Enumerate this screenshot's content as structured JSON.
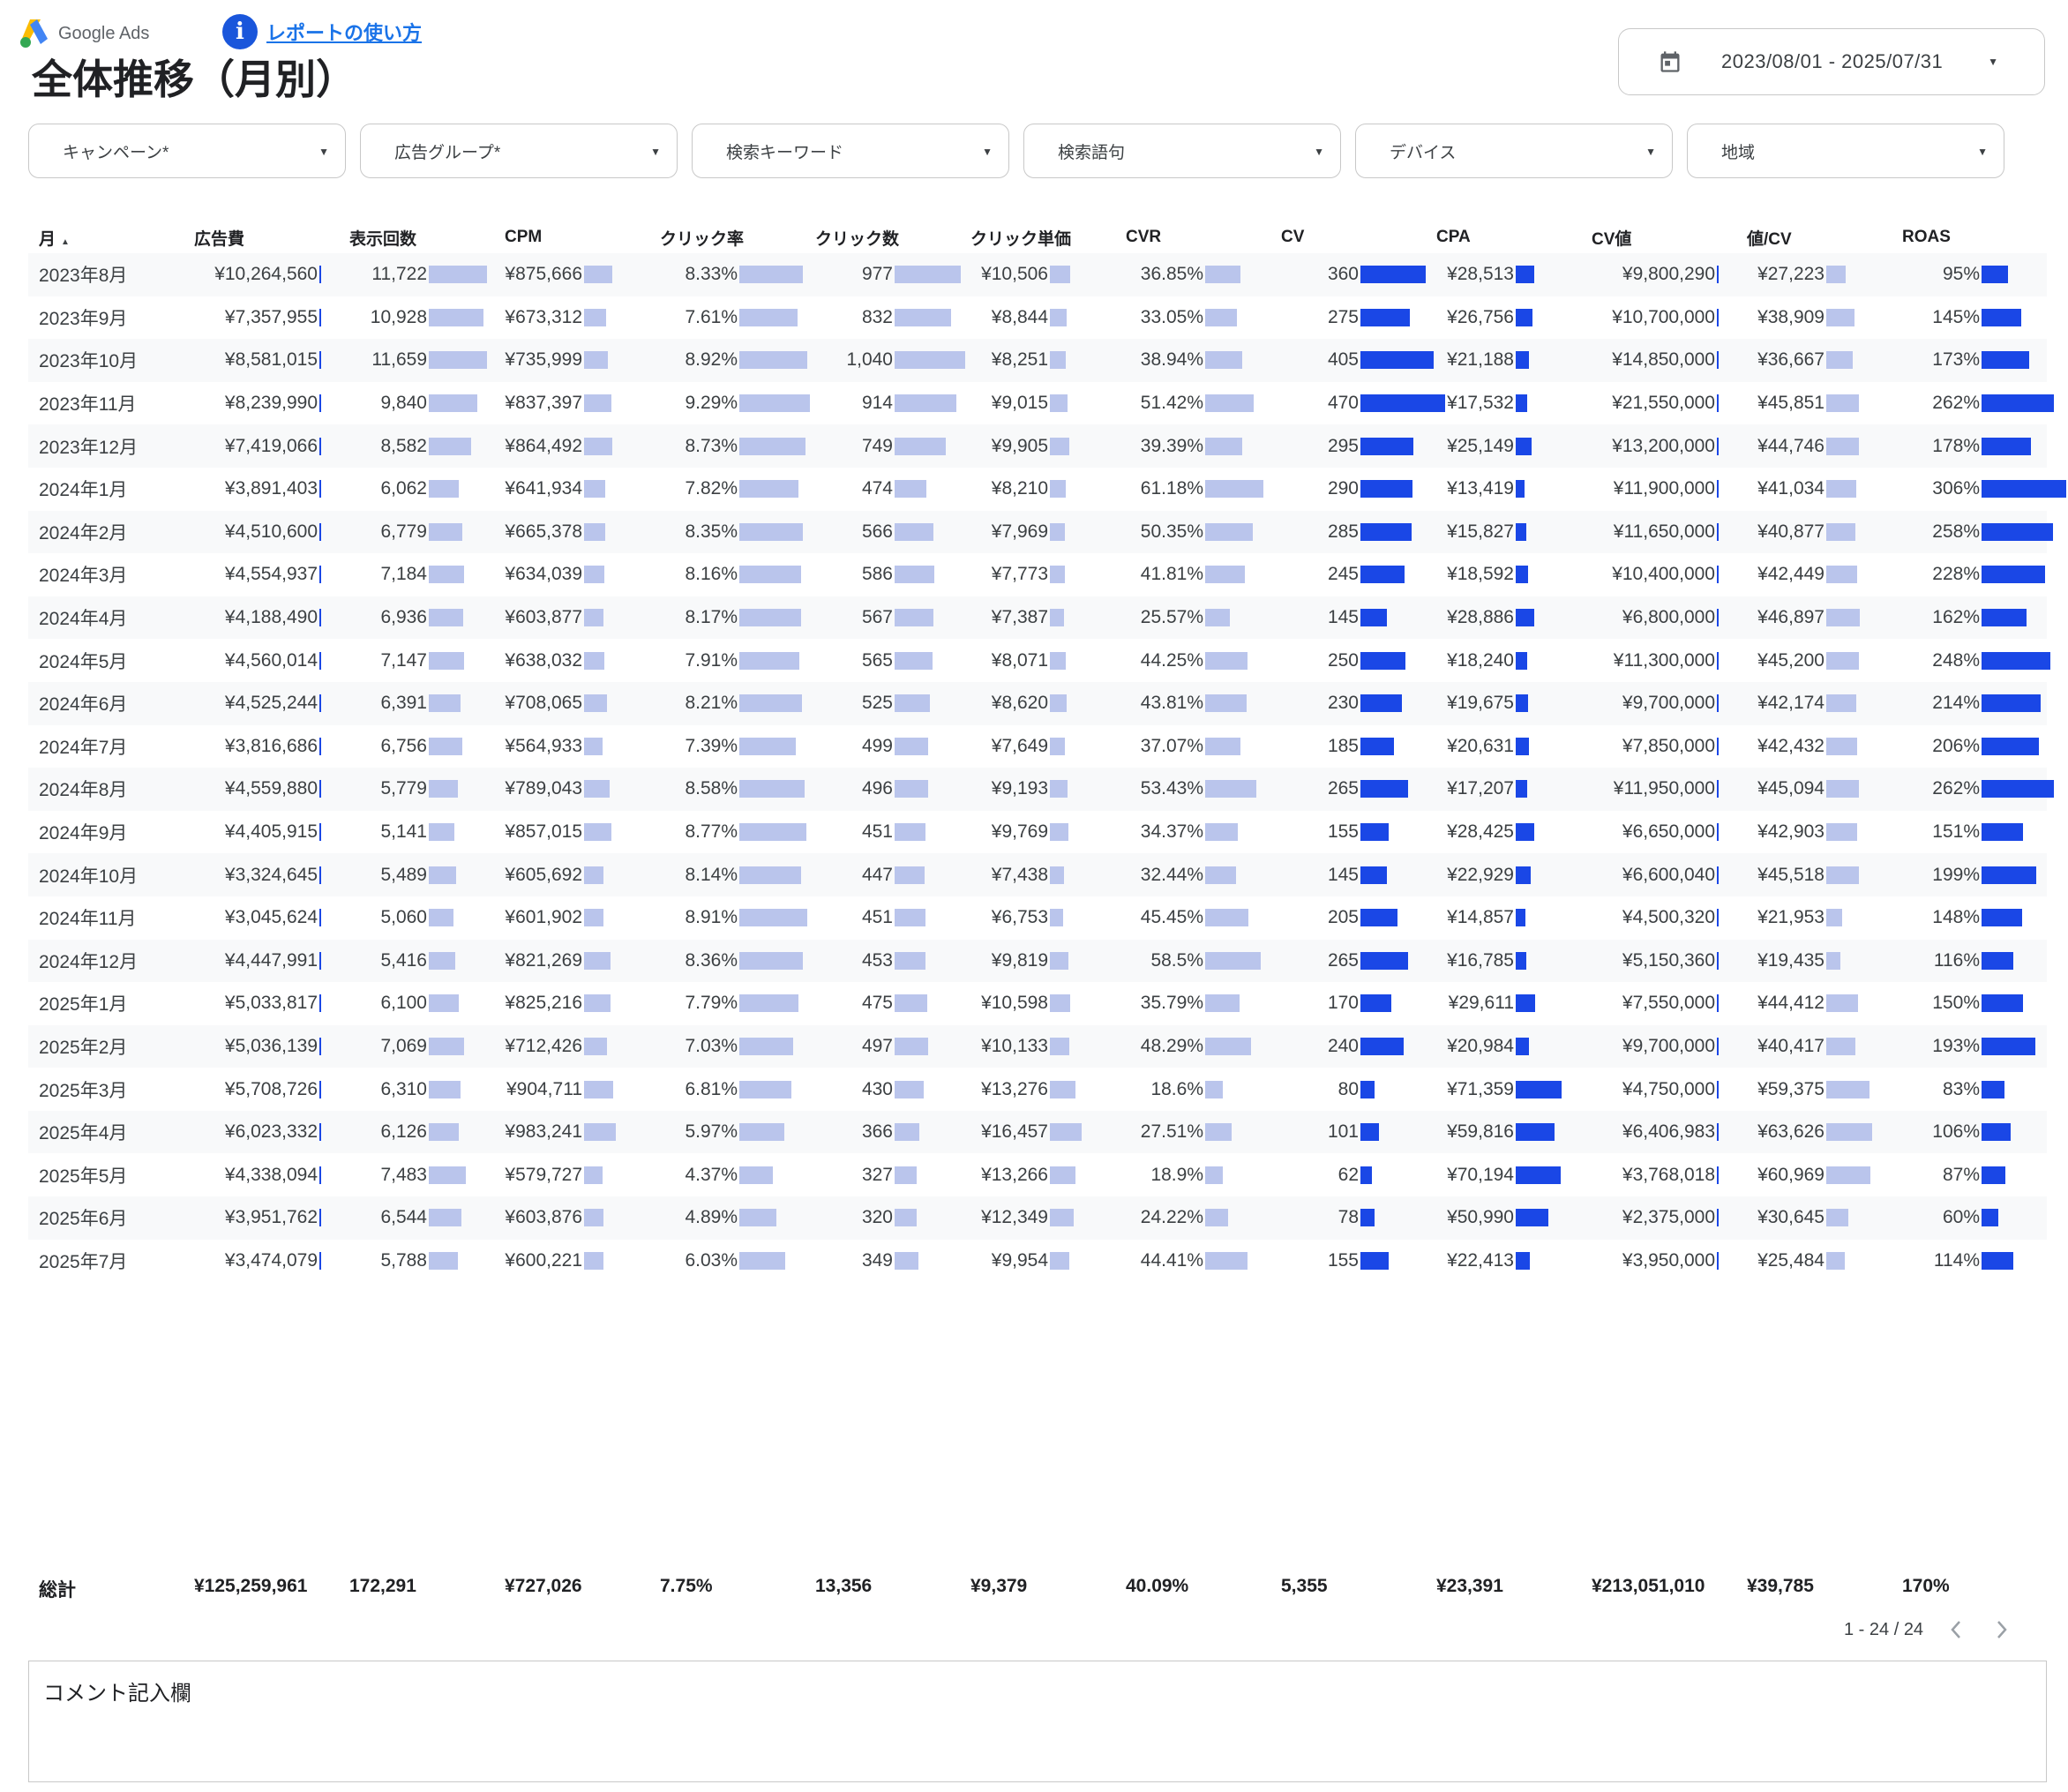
{
  "header": {
    "logo_text": "Google Ads",
    "help_link": "レポートの使い方",
    "title": "全体推移（月別）",
    "date_range": "2023/08/01 - 2025/07/31"
  },
  "filters": [
    "キャンペーン*",
    "広告グループ*",
    "検索キーワード",
    "検索語句",
    "デバイス",
    "地域"
  ],
  "table": {
    "columns": [
      "月",
      "広告費",
      "表示回数",
      "CPM",
      "クリック率",
      "クリック数",
      "クリック単価",
      "CVR",
      "CV",
      "CPA",
      "CV値",
      "値/CV",
      "ROAS"
    ],
    "rows": [
      {
        "month": "2023年8月",
        "cost": "¥10,264,560",
        "imp": "11,722",
        "cpm": "¥875,666",
        "ctr": "8.33%",
        "clicks": "977",
        "cpc": "¥10,506",
        "cvr": "36.85%",
        "cv": "360",
        "cpa": "¥28,513",
        "cvv": "¥9,800,290",
        "vpc": "¥27,223",
        "roas": "95%"
      },
      {
        "month": "2023年9月",
        "cost": "¥7,357,955",
        "imp": "10,928",
        "cpm": "¥673,312",
        "ctr": "7.61%",
        "clicks": "832",
        "cpc": "¥8,844",
        "cvr": "33.05%",
        "cv": "275",
        "cpa": "¥26,756",
        "cvv": "¥10,700,000",
        "vpc": "¥38,909",
        "roas": "145%"
      },
      {
        "month": "2023年10月",
        "cost": "¥8,581,015",
        "imp": "11,659",
        "cpm": "¥735,999",
        "ctr": "8.92%",
        "clicks": "1,040",
        "cpc": "¥8,251",
        "cvr": "38.94%",
        "cv": "405",
        "cpa": "¥21,188",
        "cvv": "¥14,850,000",
        "vpc": "¥36,667",
        "roas": "173%"
      },
      {
        "month": "2023年11月",
        "cost": "¥8,239,990",
        "imp": "9,840",
        "cpm": "¥837,397",
        "ctr": "9.29%",
        "clicks": "914",
        "cpc": "¥9,015",
        "cvr": "51.42%",
        "cv": "470",
        "cpa": "¥17,532",
        "cvv": "¥21,550,000",
        "vpc": "¥45,851",
        "roas": "262%"
      },
      {
        "month": "2023年12月",
        "cost": "¥7,419,066",
        "imp": "8,582",
        "cpm": "¥864,492",
        "ctr": "8.73%",
        "clicks": "749",
        "cpc": "¥9,905",
        "cvr": "39.39%",
        "cv": "295",
        "cpa": "¥25,149",
        "cvv": "¥13,200,000",
        "vpc": "¥44,746",
        "roas": "178%"
      },
      {
        "month": "2024年1月",
        "cost": "¥3,891,403",
        "imp": "6,062",
        "cpm": "¥641,934",
        "ctr": "7.82%",
        "clicks": "474",
        "cpc": "¥8,210",
        "cvr": "61.18%",
        "cv": "290",
        "cpa": "¥13,419",
        "cvv": "¥11,900,000",
        "vpc": "¥41,034",
        "roas": "306%"
      },
      {
        "month": "2024年2月",
        "cost": "¥4,510,600",
        "imp": "6,779",
        "cpm": "¥665,378",
        "ctr": "8.35%",
        "clicks": "566",
        "cpc": "¥7,969",
        "cvr": "50.35%",
        "cv": "285",
        "cpa": "¥15,827",
        "cvv": "¥11,650,000",
        "vpc": "¥40,877",
        "roas": "258%"
      },
      {
        "month": "2024年3月",
        "cost": "¥4,554,937",
        "imp": "7,184",
        "cpm": "¥634,039",
        "ctr": "8.16%",
        "clicks": "586",
        "cpc": "¥7,773",
        "cvr": "41.81%",
        "cv": "245",
        "cpa": "¥18,592",
        "cvv": "¥10,400,000",
        "vpc": "¥42,449",
        "roas": "228%"
      },
      {
        "month": "2024年4月",
        "cost": "¥4,188,490",
        "imp": "6,936",
        "cpm": "¥603,877",
        "ctr": "8.17%",
        "clicks": "567",
        "cpc": "¥7,387",
        "cvr": "25.57%",
        "cv": "145",
        "cpa": "¥28,886",
        "cvv": "¥6,800,000",
        "vpc": "¥46,897",
        "roas": "162%"
      },
      {
        "month": "2024年5月",
        "cost": "¥4,560,014",
        "imp": "7,147",
        "cpm": "¥638,032",
        "ctr": "7.91%",
        "clicks": "565",
        "cpc": "¥8,071",
        "cvr": "44.25%",
        "cv": "250",
        "cpa": "¥18,240",
        "cvv": "¥11,300,000",
        "vpc": "¥45,200",
        "roas": "248%"
      },
      {
        "month": "2024年6月",
        "cost": "¥4,525,244",
        "imp": "6,391",
        "cpm": "¥708,065",
        "ctr": "8.21%",
        "clicks": "525",
        "cpc": "¥8,620",
        "cvr": "43.81%",
        "cv": "230",
        "cpa": "¥19,675",
        "cvv": "¥9,700,000",
        "vpc": "¥42,174",
        "roas": "214%"
      },
      {
        "month": "2024年7月",
        "cost": "¥3,816,686",
        "imp": "6,756",
        "cpm": "¥564,933",
        "ctr": "7.39%",
        "clicks": "499",
        "cpc": "¥7,649",
        "cvr": "37.07%",
        "cv": "185",
        "cpa": "¥20,631",
        "cvv": "¥7,850,000",
        "vpc": "¥42,432",
        "roas": "206%"
      },
      {
        "month": "2024年8月",
        "cost": "¥4,559,880",
        "imp": "5,779",
        "cpm": "¥789,043",
        "ctr": "8.58%",
        "clicks": "496",
        "cpc": "¥9,193",
        "cvr": "53.43%",
        "cv": "265",
        "cpa": "¥17,207",
        "cvv": "¥11,950,000",
        "vpc": "¥45,094",
        "roas": "262%"
      },
      {
        "month": "2024年9月",
        "cost": "¥4,405,915",
        "imp": "5,141",
        "cpm": "¥857,015",
        "ctr": "8.77%",
        "clicks": "451",
        "cpc": "¥9,769",
        "cvr": "34.37%",
        "cv": "155",
        "cpa": "¥28,425",
        "cvv": "¥6,650,000",
        "vpc": "¥42,903",
        "roas": "151%"
      },
      {
        "month": "2024年10月",
        "cost": "¥3,324,645",
        "imp": "5,489",
        "cpm": "¥605,692",
        "ctr": "8.14%",
        "clicks": "447",
        "cpc": "¥7,438",
        "cvr": "32.44%",
        "cv": "145",
        "cpa": "¥22,929",
        "cvv": "¥6,600,040",
        "vpc": "¥45,518",
        "roas": "199%"
      },
      {
        "month": "2024年11月",
        "cost": "¥3,045,624",
        "imp": "5,060",
        "cpm": "¥601,902",
        "ctr": "8.91%",
        "clicks": "451",
        "cpc": "¥6,753",
        "cvr": "45.45%",
        "cv": "205",
        "cpa": "¥14,857",
        "cvv": "¥4,500,320",
        "vpc": "¥21,953",
        "roas": "148%"
      },
      {
        "month": "2024年12月",
        "cost": "¥4,447,991",
        "imp": "5,416",
        "cpm": "¥821,269",
        "ctr": "8.36%",
        "clicks": "453",
        "cpc": "¥9,819",
        "cvr": "58.5%",
        "cv": "265",
        "cpa": "¥16,785",
        "cvv": "¥5,150,360",
        "vpc": "¥19,435",
        "roas": "116%"
      },
      {
        "month": "2025年1月",
        "cost": "¥5,033,817",
        "imp": "6,100",
        "cpm": "¥825,216",
        "ctr": "7.79%",
        "clicks": "475",
        "cpc": "¥10,598",
        "cvr": "35.79%",
        "cv": "170",
        "cpa": "¥29,611",
        "cvv": "¥7,550,000",
        "vpc": "¥44,412",
        "roas": "150%"
      },
      {
        "month": "2025年2月",
        "cost": "¥5,036,139",
        "imp": "7,069",
        "cpm": "¥712,426",
        "ctr": "7.03%",
        "clicks": "497",
        "cpc": "¥10,133",
        "cvr": "48.29%",
        "cv": "240",
        "cpa": "¥20,984",
        "cvv": "¥9,700,000",
        "vpc": "¥40,417",
        "roas": "193%"
      },
      {
        "month": "2025年3月",
        "cost": "¥5,708,726",
        "imp": "6,310",
        "cpm": "¥904,711",
        "ctr": "6.81%",
        "clicks": "430",
        "cpc": "¥13,276",
        "cvr": "18.6%",
        "cv": "80",
        "cpa": "¥71,359",
        "cvv": "¥4,750,000",
        "vpc": "¥59,375",
        "roas": "83%"
      },
      {
        "month": "2025年4月",
        "cost": "¥6,023,332",
        "imp": "6,126",
        "cpm": "¥983,241",
        "ctr": "5.97%",
        "clicks": "366",
        "cpc": "¥16,457",
        "cvr": "27.51%",
        "cv": "101",
        "cpa": "¥59,816",
        "cvv": "¥6,406,983",
        "vpc": "¥63,626",
        "roas": "106%"
      },
      {
        "month": "2025年5月",
        "cost": "¥4,338,094",
        "imp": "7,483",
        "cpm": "¥579,727",
        "ctr": "4.37%",
        "clicks": "327",
        "cpc": "¥13,266",
        "cvr": "18.9%",
        "cv": "62",
        "cpa": "¥70,194",
        "cvv": "¥3,768,018",
        "vpc": "¥60,969",
        "roas": "87%"
      },
      {
        "month": "2025年6月",
        "cost": "¥3,951,762",
        "imp": "6,544",
        "cpm": "¥603,876",
        "ctr": "4.89%",
        "clicks": "320",
        "cpc": "¥12,349",
        "cvr": "24.22%",
        "cv": "78",
        "cpa": "¥50,990",
        "cvv": "¥2,375,000",
        "vpc": "¥30,645",
        "roas": "60%"
      },
      {
        "month": "2025年7月",
        "cost": "¥3,474,079",
        "imp": "5,788",
        "cpm": "¥600,221",
        "ctr": "6.03%",
        "clicks": "349",
        "cpc": "¥9,954",
        "cvr": "44.41%",
        "cv": "155",
        "cpa": "¥22,413",
        "cvv": "¥3,950,000",
        "vpc": "¥25,484",
        "roas": "114%"
      }
    ],
    "totals": {
      "label": "総計",
      "cost": "¥125,259,961",
      "imp": "172,291",
      "cpm": "¥727,026",
      "ctr": "7.75%",
      "clicks": "13,356",
      "cpc": "¥9,379",
      "cvr": "40.09%",
      "cv": "5,355",
      "cpa": "¥23,391",
      "cvv": "¥213,051,010",
      "vpc": "¥39,785",
      "roas": "170%"
    },
    "pagination": "1 - 24 / 24"
  },
  "comment": {
    "label": "コメント記入欄"
  },
  "colors": {
    "bar_light": "#bac5ec",
    "bar_dark": "#1a47e6",
    "link": "#1a73e8",
    "info": "#1a56db"
  }
}
